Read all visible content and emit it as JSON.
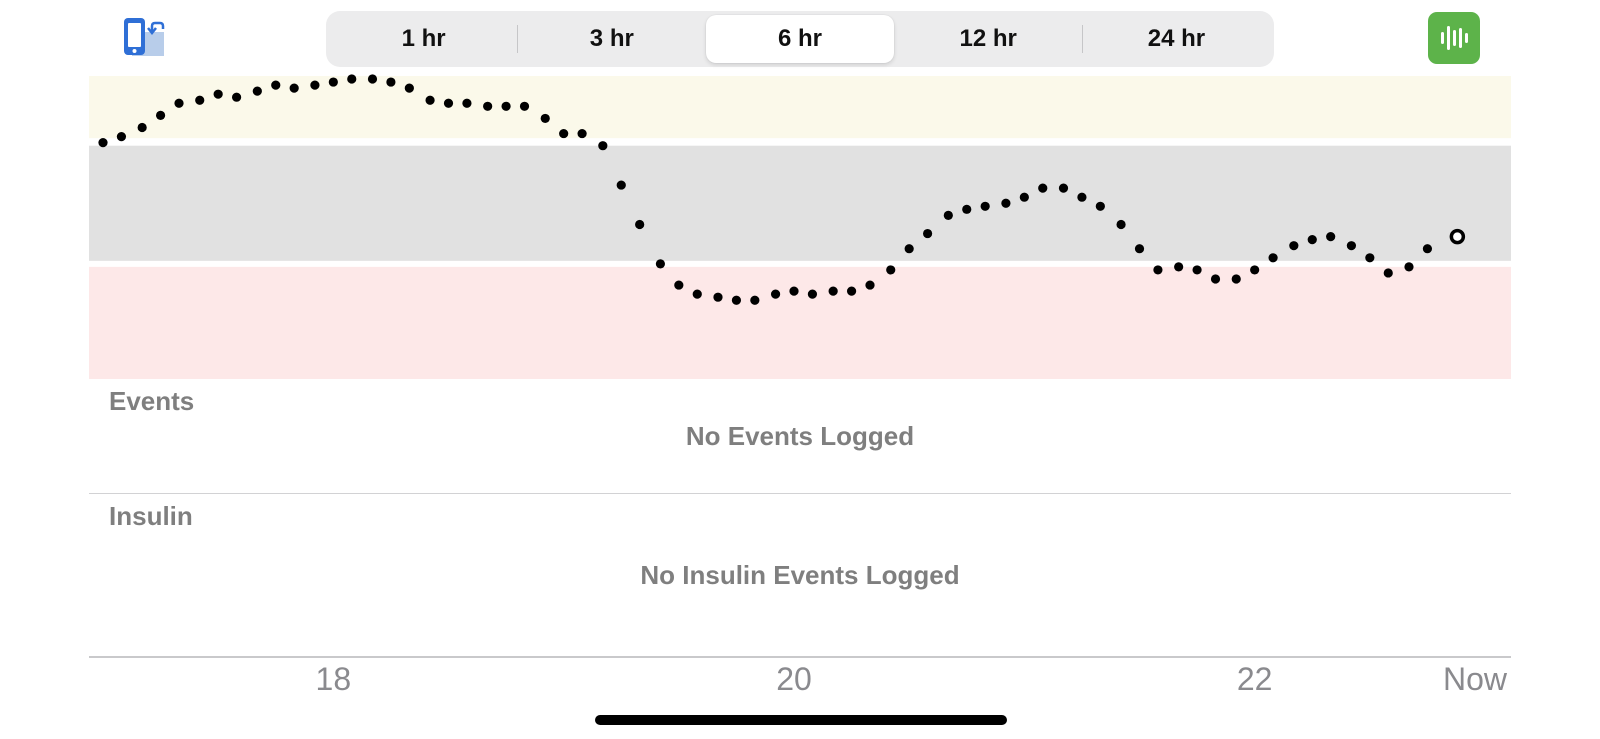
{
  "toolbar": {
    "rotate_icon": "rotate-device-icon",
    "stats_icon": "statistics-icon",
    "stats_color": "#5db34a",
    "ranges": [
      {
        "label": "1 hr",
        "selected": false
      },
      {
        "label": "3 hr",
        "selected": false
      },
      {
        "label": "6 hr",
        "selected": true
      },
      {
        "label": "12 hr",
        "selected": false
      },
      {
        "label": "24 hr",
        "selected": false
      }
    ]
  },
  "colors": {
    "high_zone": "#fbf9ea",
    "target_zone": "#e1e1e1",
    "low_zone": "#fde8e8",
    "reading_dot": "#000000"
  },
  "chart_data": {
    "type": "scatter",
    "x_unit": "hour of day",
    "xlim": [
      17.0,
      23.0
    ],
    "x_ticks": [
      {
        "value": 18,
        "label": "18"
      },
      {
        "value": 20,
        "label": "20"
      },
      {
        "value": 22,
        "label": "22"
      },
      {
        "value": 23,
        "label": "Now"
      }
    ],
    "ylim": [
      0,
      1
    ],
    "zones": [
      {
        "name": "high",
        "from": 0.795,
        "to": 1.0
      },
      {
        "name": "target",
        "from": 0.39,
        "to": 0.77
      },
      {
        "name": "low",
        "from": 0.0,
        "to": 0.37
      }
    ],
    "points": [
      {
        "x": 17.0,
        "y": 0.78
      },
      {
        "x": 17.08,
        "y": 0.8
      },
      {
        "x": 17.17,
        "y": 0.83
      },
      {
        "x": 17.25,
        "y": 0.87
      },
      {
        "x": 17.33,
        "y": 0.91
      },
      {
        "x": 17.42,
        "y": 0.92
      },
      {
        "x": 17.5,
        "y": 0.94
      },
      {
        "x": 17.58,
        "y": 0.93
      },
      {
        "x": 17.67,
        "y": 0.95
      },
      {
        "x": 17.75,
        "y": 0.97
      },
      {
        "x": 17.83,
        "y": 0.96
      },
      {
        "x": 17.92,
        "y": 0.97
      },
      {
        "x": 18.0,
        "y": 0.98
      },
      {
        "x": 18.08,
        "y": 0.99
      },
      {
        "x": 18.17,
        "y": 0.99
      },
      {
        "x": 18.25,
        "y": 0.98
      },
      {
        "x": 18.33,
        "y": 0.96
      },
      {
        "x": 18.42,
        "y": 0.92
      },
      {
        "x": 18.5,
        "y": 0.91
      },
      {
        "x": 18.58,
        "y": 0.91
      },
      {
        "x": 18.67,
        "y": 0.9
      },
      {
        "x": 18.75,
        "y": 0.9
      },
      {
        "x": 18.83,
        "y": 0.9
      },
      {
        "x": 18.92,
        "y": 0.86
      },
      {
        "x": 19.0,
        "y": 0.81
      },
      {
        "x": 19.08,
        "y": 0.81
      },
      {
        "x": 19.17,
        "y": 0.77
      },
      {
        "x": 19.25,
        "y": 0.64
      },
      {
        "x": 19.33,
        "y": 0.51
      },
      {
        "x": 19.42,
        "y": 0.38
      },
      {
        "x": 19.5,
        "y": 0.31
      },
      {
        "x": 19.58,
        "y": 0.28
      },
      {
        "x": 19.67,
        "y": 0.27
      },
      {
        "x": 19.75,
        "y": 0.26
      },
      {
        "x": 19.83,
        "y": 0.26
      },
      {
        "x": 19.92,
        "y": 0.28
      },
      {
        "x": 20.0,
        "y": 0.29
      },
      {
        "x": 20.08,
        "y": 0.28
      },
      {
        "x": 20.17,
        "y": 0.29
      },
      {
        "x": 20.25,
        "y": 0.29
      },
      {
        "x": 20.33,
        "y": 0.31
      },
      {
        "x": 20.42,
        "y": 0.36
      },
      {
        "x": 20.5,
        "y": 0.43
      },
      {
        "x": 20.58,
        "y": 0.48
      },
      {
        "x": 20.67,
        "y": 0.54
      },
      {
        "x": 20.75,
        "y": 0.56
      },
      {
        "x": 20.83,
        "y": 0.57
      },
      {
        "x": 20.92,
        "y": 0.58
      },
      {
        "x": 21.0,
        "y": 0.6
      },
      {
        "x": 21.08,
        "y": 0.63
      },
      {
        "x": 21.17,
        "y": 0.63
      },
      {
        "x": 21.25,
        "y": 0.6
      },
      {
        "x": 21.33,
        "y": 0.57
      },
      {
        "x": 21.42,
        "y": 0.51
      },
      {
        "x": 21.5,
        "y": 0.43
      },
      {
        "x": 21.58,
        "y": 0.36
      },
      {
        "x": 21.67,
        "y": 0.37
      },
      {
        "x": 21.75,
        "y": 0.36
      },
      {
        "x": 21.83,
        "y": 0.33
      },
      {
        "x": 21.92,
        "y": 0.33
      },
      {
        "x": 22.0,
        "y": 0.36
      },
      {
        "x": 22.08,
        "y": 0.4
      },
      {
        "x": 22.17,
        "y": 0.44
      },
      {
        "x": 22.25,
        "y": 0.46
      },
      {
        "x": 22.33,
        "y": 0.47
      },
      {
        "x": 22.42,
        "y": 0.44
      },
      {
        "x": 22.5,
        "y": 0.4
      },
      {
        "x": 22.58,
        "y": 0.35
      },
      {
        "x": 22.67,
        "y": 0.37
      },
      {
        "x": 22.75,
        "y": 0.43
      },
      {
        "x": 22.88,
        "y": 0.47,
        "latest": true
      }
    ]
  },
  "events": {
    "title": "Events",
    "empty_message": "No Events Logged"
  },
  "insulin": {
    "title": "Insulin",
    "empty_message": "No Insulin Events Logged"
  }
}
